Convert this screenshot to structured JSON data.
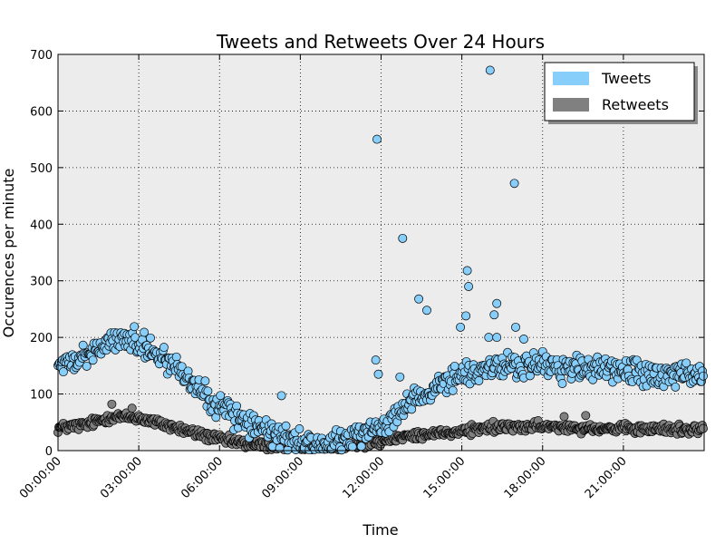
{
  "chart_data": {
    "type": "scatter",
    "title": "Tweets and Retweets Over 24 Hours",
    "xlabel": "Time",
    "ylabel": "Occurences per minute",
    "xlim_hours": [
      0,
      24
    ],
    "ylim": [
      0,
      700
    ],
    "yticks": [
      0,
      100,
      200,
      300,
      400,
      500,
      600,
      700
    ],
    "xticks": [
      {
        "hour": 0,
        "label": "00:00:00"
      },
      {
        "hour": 3,
        "label": "03:00:00"
      },
      {
        "hour": 6,
        "label": "06:00:00"
      },
      {
        "hour": 9,
        "label": "09:00:00"
      },
      {
        "hour": 12,
        "label": "12:00:00"
      },
      {
        "hour": 15,
        "label": "15:00:00"
      },
      {
        "hour": 18,
        "label": "18:00:00"
      },
      {
        "hour": 21,
        "label": "21:00:00"
      }
    ],
    "grid": true,
    "background_color": "#ececec",
    "legend_position": "top-right",
    "series": [
      {
        "name": "Tweets",
        "color": "#87cefa",
        "profile": [
          [
            0,
            150
          ],
          [
            1,
            165
          ],
          [
            2,
            195
          ],
          [
            3,
            190
          ],
          [
            4,
            165
          ],
          [
            5,
            120
          ],
          [
            6,
            80
          ],
          [
            7,
            50
          ],
          [
            8,
            30
          ],
          [
            9,
            15
          ],
          [
            10,
            12
          ],
          [
            11,
            25
          ],
          [
            12,
            45
          ],
          [
            13,
            80
          ],
          [
            14,
            110
          ],
          [
            15,
            135
          ],
          [
            16,
            145
          ],
          [
            17,
            150
          ],
          [
            18,
            150
          ],
          [
            19,
            145
          ],
          [
            20,
            145
          ],
          [
            21,
            140
          ],
          [
            22,
            135
          ],
          [
            23,
            135
          ],
          [
            24,
            135
          ]
        ],
        "spread": 18,
        "outliers": [
          [
            11.85,
            550
          ],
          [
            12.8,
            375
          ],
          [
            16.05,
            672
          ],
          [
            16.95,
            472
          ],
          [
            15.2,
            318
          ],
          [
            15.25,
            290
          ],
          [
            13.4,
            268
          ],
          [
            14.95,
            218
          ],
          [
            16.3,
            260
          ],
          [
            16.2,
            240
          ],
          [
            13.7,
            248
          ],
          [
            15.15,
            238
          ],
          [
            8.3,
            97
          ],
          [
            11.8,
            160
          ],
          [
            11.9,
            135
          ],
          [
            12.7,
            130
          ],
          [
            16.0,
            200
          ],
          [
            16.3,
            200
          ],
          [
            17.0,
            218
          ],
          [
            17.3,
            197
          ]
        ]
      },
      {
        "name": "Retweets",
        "color": "#808080",
        "profile": [
          [
            0,
            40
          ],
          [
            1,
            45
          ],
          [
            2,
            60
          ],
          [
            3,
            58
          ],
          [
            4,
            45
          ],
          [
            5,
            32
          ],
          [
            6,
            20
          ],
          [
            7,
            12
          ],
          [
            8,
            8
          ],
          [
            9,
            6
          ],
          [
            10,
            8
          ],
          [
            11,
            12
          ],
          [
            12,
            18
          ],
          [
            13,
            25
          ],
          [
            14,
            30
          ],
          [
            15,
            35
          ],
          [
            16,
            40
          ],
          [
            17,
            42
          ],
          [
            18,
            42
          ],
          [
            19,
            42
          ],
          [
            20,
            40
          ],
          [
            21,
            38
          ],
          [
            22,
            38
          ],
          [
            23,
            38
          ],
          [
            24,
            38
          ]
        ],
        "spread": 7,
        "outliers": [
          [
            2.0,
            82
          ],
          [
            2.75,
            75
          ],
          [
            19.6,
            62
          ],
          [
            18.8,
            60
          ]
        ]
      }
    ]
  }
}
